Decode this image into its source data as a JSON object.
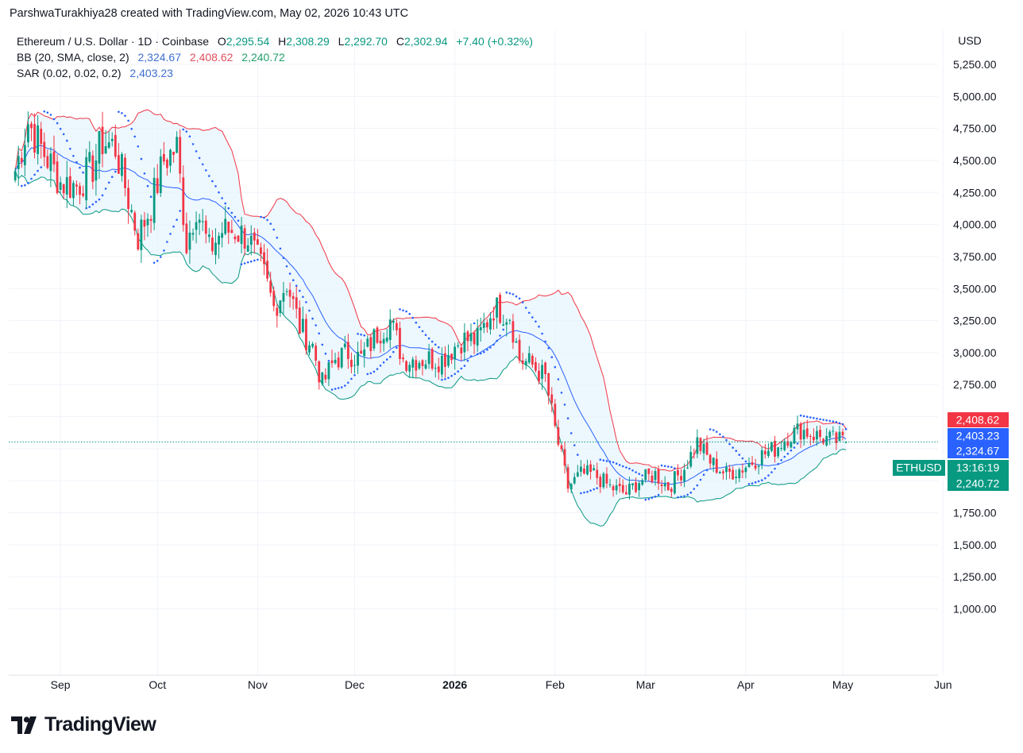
{
  "header": {
    "text": "ParshwaTurakhiya28 created with TradingView.com, May 02, 2026 10:43 UTC"
  },
  "legend": {
    "symbol": "Ethereum / U.S. Dollar · 1D · Coinbase",
    "o_label": "O",
    "o_value": "2,295.54",
    "h_label": "H",
    "h_value": "2,308.29",
    "l_label": "L",
    "l_value": "2,292.70",
    "c_label": "C",
    "c_value": "2,302.94",
    "change": "+7.40 (+0.32%)",
    "bb_label": "BB (20, SMA, close, 2)",
    "bb_basis": "2,324.67",
    "bb_upper": "2,408.62",
    "bb_lower": "2,240.72",
    "sar_label": "SAR (0.02, 0.02, 0.2)",
    "sar_value": "2,403.23"
  },
  "price_axis": {
    "currency": "USD",
    "ticks": [
      "5,250.00",
      "5,000.00",
      "4,750.00",
      "4,500.00",
      "4,250.00",
      "4,000.00",
      "3,750.00",
      "3,500.00",
      "3,250.00",
      "3,000.00",
      "2,750.00",
      "2,500.00",
      "2,250.00",
      "2,000.00",
      "1,750.00",
      "1,500.00",
      "1,250.00",
      "1,000.00"
    ]
  },
  "time_axis": {
    "labels": [
      "Sep",
      "Oct",
      "Nov",
      "Dec",
      "2026",
      "Feb",
      "Mar",
      "Apr",
      "May",
      "Jun"
    ]
  },
  "price_tags": [
    {
      "label": "2,408.62",
      "value": 2408.62,
      "color": "#f23645"
    },
    {
      "label": "2,403.23",
      "value": 2403.23,
      "color": "#2962ff"
    },
    {
      "label": "2,324.67",
      "value": 2324.67,
      "color": "#2962ff"
    },
    {
      "label": "13:16:19",
      "value": 2302.94,
      "color": "#089981"
    },
    {
      "label": "2,240.72",
      "value": 2240.72,
      "color": "#089981"
    }
  ],
  "symbol_tag": "ETHUSD",
  "branding": {
    "wordmark": "TradingView"
  },
  "colors": {
    "up": "#089981",
    "down": "#f23645",
    "bb_upper": "#f23645",
    "bb_lower": "#089981",
    "bb_basis": "#2962ff",
    "sar": "#2962ff",
    "band_fill": "#e3f2fd",
    "grid": "#f0f3fa",
    "text": "#131722"
  },
  "chart_data": {
    "type": "candlestick",
    "symbol": "ETHUSD",
    "timeframe": "1D",
    "exchange": "Coinbase",
    "ylim": [
      850,
      5400
    ],
    "log_scale": false,
    "grid": true,
    "indicators": [
      "Bollinger Bands (20, SMA, close, 2)",
      "Parabolic SAR (0.02, 0.02, 0.2)"
    ],
    "x_ticks": [
      "Sep",
      "Oct",
      "Nov",
      "Dec",
      "2026",
      "Feb",
      "Mar",
      "Apr",
      "May",
      "Jun"
    ],
    "ohlc_last": {
      "date": "2026-05-02",
      "open": 2295.54,
      "high": 2308.29,
      "low": 2292.7,
      "close": 2302.94,
      "change": 7.4,
      "change_pct": 0.32
    },
    "bb_last": {
      "basis": 2324.67,
      "upper": 2408.62,
      "lower": 2240.72
    },
    "sar_last": 2403.23,
    "closes_sampled": [
      {
        "d": "2025-08-18",
        "c": 4420
      },
      {
        "d": "2025-08-22",
        "c": 4800
      },
      {
        "d": "2025-08-26",
        "c": 4600
      },
      {
        "d": "2025-09-01",
        "c": 4330
      },
      {
        "d": "2025-09-06",
        "c": 4300
      },
      {
        "d": "2025-09-11",
        "c": 4450
      },
      {
        "d": "2025-09-14",
        "c": 4650
      },
      {
        "d": "2025-09-18",
        "c": 4600
      },
      {
        "d": "2025-09-22",
        "c": 4200
      },
      {
        "d": "2025-09-25",
        "c": 3900
      },
      {
        "d": "2025-09-29",
        "c": 4150
      },
      {
        "d": "2025-10-03",
        "c": 4500
      },
      {
        "d": "2025-10-07",
        "c": 4600
      },
      {
        "d": "2025-10-10",
        "c": 3850
      },
      {
        "d": "2025-10-13",
        "c": 4150
      },
      {
        "d": "2025-10-17",
        "c": 3800
      },
      {
        "d": "2025-10-21",
        "c": 3950
      },
      {
        "d": "2025-10-25",
        "c": 3950
      },
      {
        "d": "2025-10-29",
        "c": 3900
      },
      {
        "d": "2025-11-03",
        "c": 3600
      },
      {
        "d": "2025-11-06",
        "c": 3350
      },
      {
        "d": "2025-11-10",
        "c": 3550
      },
      {
        "d": "2025-11-14",
        "c": 3200
      },
      {
        "d": "2025-11-18",
        "c": 3050
      },
      {
        "d": "2025-11-21",
        "c": 2750
      },
      {
        "d": "2025-11-25",
        "c": 2950
      },
      {
        "d": "2025-11-29",
        "c": 3000
      },
      {
        "d": "2025-12-03",
        "c": 2950
      },
      {
        "d": "2025-12-08",
        "c": 3150
      },
      {
        "d": "2025-12-12",
        "c": 3250
      },
      {
        "d": "2025-12-16",
        "c": 2950
      },
      {
        "d": "2025-12-20",
        "c": 2950
      },
      {
        "d": "2025-12-24",
        "c": 2950
      },
      {
        "d": "2025-12-28",
        "c": 2950
      },
      {
        "d": "2026-01-03",
        "c": 3100
      },
      {
        "d": "2026-01-08",
        "c": 3100
      },
      {
        "d": "2026-01-13",
        "c": 3350
      },
      {
        "d": "2026-01-18",
        "c": 3300
      },
      {
        "d": "2026-01-21",
        "c": 2950
      },
      {
        "d": "2026-01-25",
        "c": 2900
      },
      {
        "d": "2026-01-29",
        "c": 2800
      },
      {
        "d": "2026-02-01",
        "c": 2400
      },
      {
        "d": "2026-02-05",
        "c": 1950
      },
      {
        "d": "2026-02-09",
        "c": 2050
      },
      {
        "d": "2026-02-13",
        "c": 2050
      },
      {
        "d": "2026-02-18",
        "c": 1950
      },
      {
        "d": "2026-02-23",
        "c": 1900
      },
      {
        "d": "2026-02-27",
        "c": 2000
      },
      {
        "d": "2026-03-04",
        "c": 2050
      },
      {
        "d": "2026-03-08",
        "c": 1950
      },
      {
        "d": "2026-03-13",
        "c": 2100
      },
      {
        "d": "2026-03-17",
        "c": 2300
      },
      {
        "d": "2026-03-21",
        "c": 2150
      },
      {
        "d": "2026-03-26",
        "c": 2050
      },
      {
        "d": "2026-03-31",
        "c": 2100
      },
      {
        "d": "2026-04-06",
        "c": 2200
      },
      {
        "d": "2026-04-10",
        "c": 2250
      },
      {
        "d": "2026-04-14",
        "c": 2350
      },
      {
        "d": "2026-04-18",
        "c": 2400
      },
      {
        "d": "2026-04-23",
        "c": 2350
      },
      {
        "d": "2026-04-27",
        "c": 2320
      },
      {
        "d": "2026-05-02",
        "c": 2302.94
      }
    ]
  }
}
